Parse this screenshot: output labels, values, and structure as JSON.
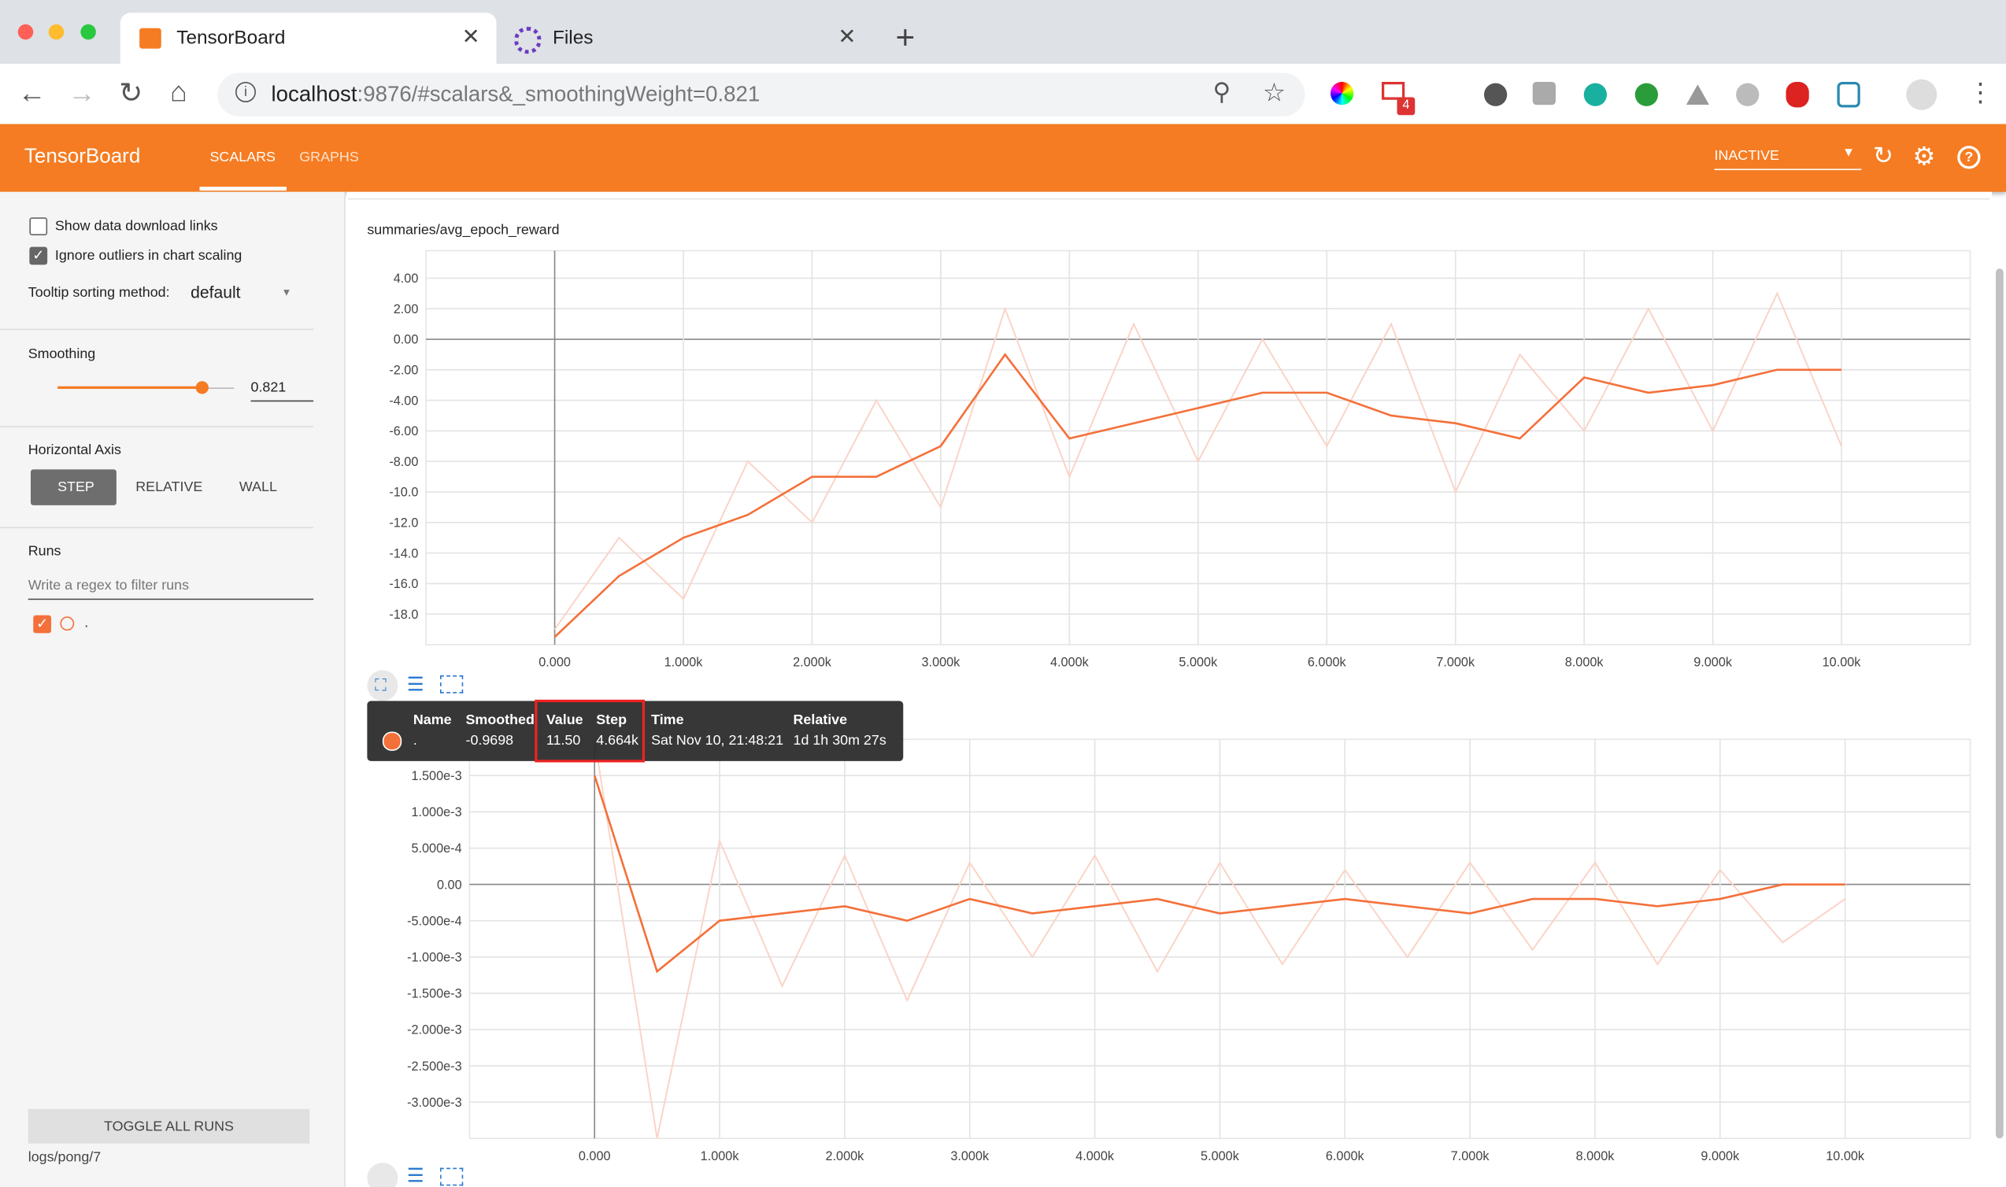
{
  "browser": {
    "tabs": [
      "TensorBoard",
      "Files"
    ],
    "url_host": "localhost",
    "url_rest": ":9876/#scalars&_smoothingWeight=0.821",
    "badge": "4"
  },
  "app": {
    "brand": "TensorBoard",
    "nav": [
      "SCALARS",
      "GRAPHS"
    ],
    "run_status": "INACTIVE"
  },
  "sidebar": {
    "checkboxes": [
      "Show data download links",
      "Ignore outliers in chart scaling"
    ],
    "tooltip_label": "Tooltip sorting method:",
    "tooltip_value": "default",
    "smoothing_label": "Smoothing",
    "smoothing": 0.821,
    "axis_label": "Horizontal Axis",
    "axis_options": [
      "STEP",
      "RELATIVE",
      "WALL"
    ],
    "runs_label": "Runs",
    "runs_filter": "Write a regex to filter runs",
    "run": ".",
    "toggle": "TOGGLE ALL RUNS",
    "logdir": "logs/pong/7"
  },
  "tooltip": {
    "headers": [
      "Name",
      "Smoothed",
      "Value",
      "Step",
      "Time",
      "Relative"
    ],
    "row": [
      ".",
      "-0.9698",
      "11.50",
      "4.664k",
      "Sat Nov 10, 21:48:21",
      "1d 1h 30m 27s"
    ]
  },
  "chart_data": [
    {
      "type": "line",
      "title": "summaries/avg_epoch_reward",
      "x": [
        0,
        500,
        1000,
        1500,
        2000,
        2500,
        3000,
        3500,
        4000,
        4500,
        5000,
        5500,
        6000,
        6500,
        7000,
        7500,
        8000,
        8500,
        9000,
        9500,
        10000
      ],
      "series": [
        {
          "color": "#fbd3c6",
          "values": [
            -19,
            -13,
            -17,
            -8,
            -12,
            -4,
            -11,
            2,
            -9,
            1,
            -8,
            0,
            -7,
            1,
            -10,
            -1,
            -6,
            2,
            -6,
            3,
            -7
          ]
        },
        {
          "color": "#f4703a",
          "values": [
            -19.5,
            -15.5,
            -13,
            -11.5,
            -9,
            -9,
            -7,
            -1,
            -6.5,
            -5.5,
            -4.5,
            -3.5,
            -3.5,
            -5,
            -5.5,
            -6.5,
            -2.5,
            -3.5,
            -3,
            -2,
            -2
          ]
        }
      ],
      "xlim": [
        -1000,
        11000
      ],
      "ylim": [
        -20,
        5.8
      ],
      "xticks": [
        {
          "value": 0,
          "label": "0.000"
        },
        {
          "value": 1000,
          "label": "1.000k"
        },
        {
          "value": 2000,
          "label": "2.000k"
        },
        {
          "value": 3000,
          "label": "3.000k"
        },
        {
          "value": 4000,
          "label": "4.000k"
        },
        {
          "value": 5000,
          "label": "5.000k"
        },
        {
          "value": 6000,
          "label": "6.000k"
        },
        {
          "value": 7000,
          "label": "7.000k"
        },
        {
          "value": 8000,
          "label": "8.000k"
        },
        {
          "value": 9000,
          "label": "9.000k"
        },
        {
          "value": 10000,
          "label": "10.00k"
        }
      ],
      "yticks": [
        {
          "value": 4,
          "label": "4.00"
        },
        {
          "value": 2,
          "label": "2.00"
        },
        {
          "value": 0,
          "label": "0.00"
        },
        {
          "value": -2,
          "label": "-2.00"
        },
        {
          "value": -4,
          "label": "-4.00"
        },
        {
          "value": -6,
          "label": "-6.00"
        },
        {
          "value": -8,
          "label": "-8.00"
        },
        {
          "value": -10,
          "label": "-10.0"
        },
        {
          "value": -12,
          "label": "-12.0"
        },
        {
          "value": -14,
          "label": "-14.0"
        },
        {
          "value": -16,
          "label": "-16.0"
        },
        {
          "value": -18,
          "label": "-18.0"
        }
      ],
      "grid": true
    },
    {
      "type": "line",
      "x": [
        0,
        500,
        1000,
        1500,
        2000,
        2500,
        3000,
        3500,
        4000,
        4500,
        5000,
        5500,
        6000,
        6500,
        7000,
        7500,
        8000,
        8500,
        9000,
        9500,
        10000
      ],
      "series": [
        {
          "color": "#fbd3c6",
          "values": [
            0.002,
            -0.0035,
            0.0006,
            -0.0014,
            0.0004,
            -0.0016,
            0.0003,
            -0.001,
            0.0004,
            -0.0012,
            0.0003,
            -0.0011,
            0.0002,
            -0.001,
            0.0003,
            -0.0009,
            0.0003,
            -0.0011,
            0.0002,
            -0.0008,
            -0.0002
          ]
        },
        {
          "color": "#f4703a",
          "values": [
            0.0015,
            -0.0012,
            -0.0005,
            -0.0004,
            -0.0003,
            -0.0005,
            -0.0002,
            -0.0004,
            -0.0003,
            -0.0002,
            -0.0004,
            -0.0003,
            -0.0002,
            -0.0003,
            -0.0004,
            -0.0002,
            -0.0002,
            -0.0003,
            -0.0002,
            0,
            0
          ]
        }
      ],
      "xlim": [
        -1000,
        11000
      ],
      "ylim": [
        -0.0035,
        0.002
      ],
      "xticks": [
        {
          "value": 0,
          "label": "0.000"
        },
        {
          "value": 1000,
          "label": "1.000k"
        },
        {
          "value": 2000,
          "label": "2.000k"
        },
        {
          "value": 3000,
          "label": "3.000k"
        },
        {
          "value": 4000,
          "label": "4.000k"
        },
        {
          "value": 5000,
          "label": "5.000k"
        },
        {
          "value": 6000,
          "label": "6.000k"
        },
        {
          "value": 7000,
          "label": "7.000k"
        },
        {
          "value": 8000,
          "label": "8.000k"
        },
        {
          "value": 9000,
          "label": "9.000k"
        },
        {
          "value": 10000,
          "label": "10.00k"
        }
      ],
      "yticks": [
        {
          "value": 0.0015,
          "label": "1.500e-3"
        },
        {
          "value": 0.001,
          "label": "1.000e-3"
        },
        {
          "value": 0.0005,
          "label": "5.000e-4"
        },
        {
          "value": 0,
          "label": "0.00"
        },
        {
          "value": -0.0005,
          "label": "-5.000e-4"
        },
        {
          "value": -0.001,
          "label": "-1.000e-3"
        },
        {
          "value": -0.0015,
          "label": "-1.500e-3"
        },
        {
          "value": -0.002,
          "label": "-2.000e-3"
        },
        {
          "value": -0.0025,
          "label": "-2.500e-3"
        },
        {
          "value": -0.003,
          "label": "-3.000e-3"
        }
      ],
      "grid": true
    }
  ]
}
